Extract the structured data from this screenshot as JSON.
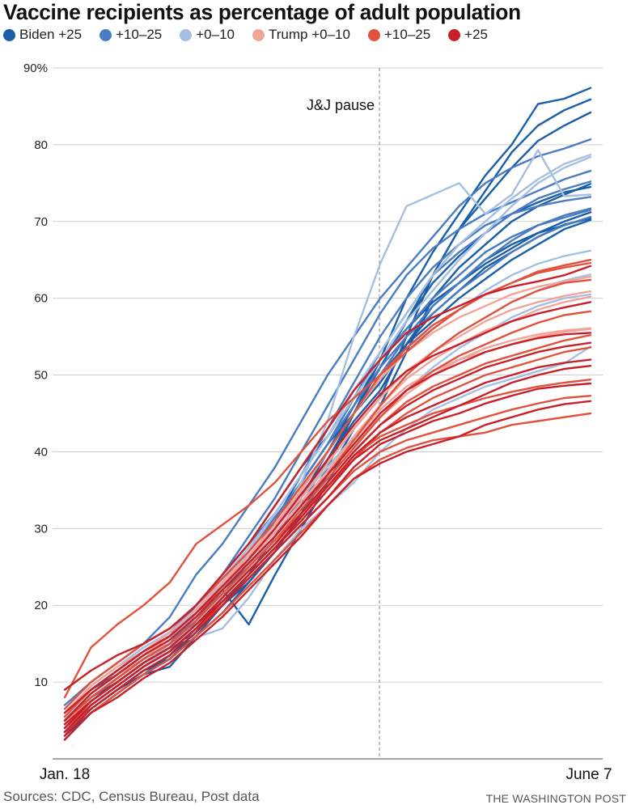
{
  "chart_data": {
    "type": "line",
    "title": "Vaccine recipients as percentage of adult population",
    "xlabel": "",
    "ylabel": "",
    "x_tick_labels": [
      "Jan. 18",
      "June 7"
    ],
    "y_ticks": [
      10,
      20,
      30,
      40,
      50,
      60,
      70,
      80,
      90
    ],
    "y_tick_labels": [
      "10",
      "20",
      "30",
      "40",
      "50",
      "60",
      "70",
      "80",
      "90%"
    ],
    "ylim": [
      0,
      90
    ],
    "x_weeks": 21,
    "grid": true,
    "legend_position": "top-left",
    "annotation": {
      "label": "J&J pause",
      "week_index": 12
    },
    "groups": [
      {
        "key": "b25",
        "label": "Biden +25",
        "color": "#1a5ea8"
      },
      {
        "key": "b10",
        "label": "+10–25",
        "color": "#4a7cc2"
      },
      {
        "key": "b0",
        "label": "+0–10",
        "color": "#a6bfe0"
      },
      {
        "key": "t0",
        "label": "Trump +0–10",
        "color": "#f2a49b"
      },
      {
        "key": "t10",
        "label": "+10–25",
        "color": "#e0523e"
      },
      {
        "key": "t25",
        "label": "+25",
        "color": "#c8202a"
      }
    ],
    "series": [
      {
        "group": "b25",
        "values": [
          3.5,
          6.5,
          9,
          11.5,
          13,
          16,
          20,
          23,
          27,
          32,
          38,
          45,
          52,
          60,
          66,
          71,
          76,
          80,
          85.3,
          86,
          87.4
        ]
      },
      {
        "group": "b25",
        "values": [
          4,
          7,
          9.5,
          12,
          14,
          18,
          22,
          25,
          29,
          33,
          39,
          45,
          51,
          57,
          63,
          69,
          74,
          79,
          82.5,
          84.5,
          85.9
        ]
      },
      {
        "group": "b25",
        "values": [
          3,
          6,
          8.5,
          11,
          12,
          16,
          19,
          23,
          27,
          32,
          37,
          43,
          47,
          55,
          63,
          69,
          73,
          77,
          80.5,
          82.5,
          84.2
        ]
      },
      {
        "group": "b25",
        "values": [
          5,
          8,
          10,
          12.5,
          14.5,
          18,
          22,
          17.5,
          24,
          30,
          36,
          42,
          46,
          53,
          60,
          64,
          67,
          70,
          72,
          73.5,
          74.9
        ]
      },
      {
        "group": "b25",
        "values": [
          3.5,
          6.5,
          9,
          11,
          13.5,
          17,
          20,
          24,
          29,
          34,
          40,
          46,
          52,
          57,
          62,
          65.5,
          68.5,
          71,
          72.5,
          73.8,
          74.5
        ]
      },
      {
        "group": "b25",
        "values": [
          2.5,
          6,
          8.5,
          11,
          13,
          16.5,
          21,
          25,
          29,
          34,
          39,
          44,
          48,
          54,
          59,
          62,
          65,
          67,
          68.5,
          69.5,
          70.5
        ]
      },
      {
        "group": "b25",
        "values": [
          4,
          7.5,
          10,
          12.5,
          15,
          18,
          22,
          26,
          31,
          37,
          43,
          48,
          52,
          56,
          59.5,
          62,
          64.5,
          66.5,
          68.5,
          70,
          71.2
        ]
      },
      {
        "group": "b25",
        "values": [
          4.5,
          8,
          10.5,
          13,
          15.5,
          19,
          23,
          27,
          31,
          36,
          41,
          45,
          49,
          54,
          58,
          61,
          64,
          66,
          68,
          69.6,
          70.4
        ]
      },
      {
        "group": "b25",
        "values": [
          6,
          9,
          11,
          13.5,
          16,
          20,
          24,
          28,
          33,
          38,
          42,
          47,
          50,
          54,
          57,
          60,
          62.5,
          65,
          67,
          69,
          70.2
        ]
      },
      {
        "group": "b10",
        "values": [
          7,
          10,
          12.5,
          15,
          18.5,
          24,
          28,
          33,
          38,
          44,
          50,
          55,
          60,
          64,
          68,
          72,
          75,
          77,
          78.5,
          79.5,
          80.7
        ]
      },
      {
        "group": "b10",
        "values": [
          5,
          8.5,
          11,
          13.5,
          16,
          20,
          24,
          29,
          34,
          40,
          46,
          52,
          58,
          63,
          66.5,
          69,
          71,
          72.5,
          74,
          75.5,
          76.6
        ]
      },
      {
        "group": "b10",
        "values": [
          4.5,
          8,
          10.5,
          13,
          15,
          19,
          23,
          27,
          31,
          36,
          41,
          47,
          53,
          58,
          63,
          66,
          68.5,
          71,
          73,
          74.2,
          75.2
        ]
      },
      {
        "group": "b10",
        "values": [
          5.5,
          9,
          11.5,
          14,
          16.5,
          20,
          24,
          28,
          32,
          37,
          43,
          49,
          55,
          60,
          64,
          67,
          69.5,
          71,
          72,
          72.7,
          73.2
        ]
      },
      {
        "group": "b10",
        "values": [
          4,
          7.5,
          10,
          12.5,
          15,
          18.5,
          22,
          26,
          31,
          36,
          41,
          47,
          52,
          56,
          60,
          63,
          66,
          68,
          69.5,
          70.8,
          71.7
        ]
      },
      {
        "group": "b10",
        "values": [
          3.5,
          7,
          9.5,
          12,
          14.5,
          18,
          22,
          26,
          30,
          35,
          40,
          45,
          50,
          55,
          59,
          62,
          65,
          67.5,
          69.5,
          70.5,
          71.5
        ]
      },
      {
        "group": "b10",
        "values": [
          5,
          8,
          10.5,
          13,
          15.5,
          19,
          23,
          27,
          31.5,
          36,
          41,
          46,
          51,
          55,
          58,
          61,
          63.5,
          66,
          68,
          69.5,
          70.6
        ]
      },
      {
        "group": "b0",
        "values": [
          4,
          7,
          9.5,
          12,
          14.5,
          17,
          21,
          25,
          30,
          36,
          44,
          55,
          64.5,
          72,
          73.5,
          75,
          71,
          73.5,
          79.3,
          73.3,
          73.5
        ]
      },
      {
        "group": "b0",
        "values": [
          4.5,
          8,
          10.5,
          13,
          15.5,
          19,
          23,
          27,
          32,
          37,
          42,
          48,
          53,
          58,
          63,
          67,
          70,
          73,
          75.5,
          77.5,
          78.7
        ]
      },
      {
        "group": "b0",
        "values": [
          5,
          8.5,
          11,
          13.5,
          16,
          19.5,
          23.5,
          27.5,
          32,
          37,
          42,
          47,
          52,
          57,
          61,
          65,
          68.5,
          72,
          75,
          77,
          78.4
        ]
      },
      {
        "group": "b0",
        "values": [
          5.5,
          9,
          11.5,
          14,
          16,
          19,
          22,
          26,
          30,
          35,
          40,
          45,
          50,
          53.5,
          56,
          58.5,
          61,
          63,
          64.5,
          65.5,
          66.2
        ]
      },
      {
        "group": "b0",
        "values": [
          6,
          9.5,
          12,
          14.5,
          16.5,
          19.5,
          23,
          26.5,
          30,
          34,
          38,
          42,
          46,
          50,
          53,
          55.5,
          57.5,
          59.5,
          61,
          62.3,
          63.1
        ]
      },
      {
        "group": "b0",
        "values": [
          4.5,
          7.5,
          10,
          12.5,
          15,
          17.5,
          21,
          25,
          29,
          33,
          37,
          41,
          44.5,
          48,
          51,
          53.5,
          55.5,
          57.5,
          59,
          60,
          60.5
        ]
      },
      {
        "group": "b0",
        "values": [
          5,
          8.5,
          11,
          13.5,
          15,
          15.8,
          17,
          21,
          26,
          30,
          33,
          36,
          40,
          43,
          45.5,
          47,
          48.5,
          49.5,
          50.5,
          51.5,
          53.7
        ]
      },
      {
        "group": "t0",
        "values": [
          5,
          8.5,
          11,
          13.5,
          16,
          19,
          22.5,
          26.5,
          30.5,
          35,
          40,
          45,
          49.5,
          53,
          55.5,
          57.5,
          59,
          60.5,
          61.5,
          62.2,
          62.8
        ]
      },
      {
        "group": "t0",
        "values": [
          6,
          9.5,
          12,
          14,
          16.5,
          19.5,
          23,
          26.5,
          30,
          34,
          38.5,
          43,
          47,
          50.5,
          53,
          55,
          57,
          58.5,
          59.5,
          60.3,
          60.9
        ]
      },
      {
        "group": "t0",
        "values": [
          4.5,
          8,
          10.5,
          13,
          15.5,
          18.5,
          22,
          25.5,
          29,
          33,
          37.5,
          42,
          46,
          49.5,
          52,
          54,
          55.8,
          57,
          58.5,
          59.5,
          60.2
        ]
      },
      {
        "group": "t0",
        "values": [
          5.5,
          9,
          11.5,
          14,
          16,
          19,
          22.5,
          26,
          29.5,
          33.5,
          37.5,
          41.5,
          45.5,
          48.5,
          50.5,
          52,
          53.5,
          54.5,
          55.3,
          55.8,
          56.1
        ]
      },
      {
        "group": "t0",
        "values": [
          5,
          8.5,
          11,
          13,
          15.5,
          18.5,
          22,
          25.5,
          29,
          33,
          37,
          41,
          44.5,
          47.5,
          50,
          52,
          53,
          54,
          55,
          55.6,
          56.0
        ]
      },
      {
        "group": "t10",
        "values": [
          8,
          14.5,
          17.5,
          20,
          23,
          28,
          30.5,
          33,
          36,
          40,
          44,
          47,
          50,
          53,
          56,
          58.5,
          60.5,
          62,
          63.5,
          64.3,
          65.0
        ]
      },
      {
        "group": "t10",
        "values": [
          6.5,
          10,
          12.5,
          15,
          17,
          20,
          23.5,
          27,
          31,
          35.5,
          40,
          45,
          50,
          53.5,
          56.5,
          58.5,
          60.5,
          62,
          63.3,
          64,
          64.6
        ]
      },
      {
        "group": "t10",
        "values": [
          5.5,
          9,
          11.5,
          14,
          16,
          19,
          22,
          25.5,
          29,
          33,
          37,
          41.5,
          46,
          50,
          53,
          55.5,
          57.5,
          59.5,
          61,
          62,
          62.4
        ]
      },
      {
        "group": "t10",
        "values": [
          5,
          8,
          10.5,
          13,
          15,
          18,
          21.5,
          25,
          28.5,
          32.5,
          36.5,
          40.5,
          44.5,
          48,
          50.5,
          52.5,
          54,
          55.5,
          56.8,
          57.8,
          58.3
        ]
      },
      {
        "group": "t10",
        "values": [
          4,
          7.5,
          10,
          12.5,
          14.5,
          17.5,
          21,
          24.5,
          28,
          32,
          36,
          40,
          43.5,
          46.5,
          48.5,
          50,
          51.5,
          52.5,
          53.5,
          54.5,
          55.2
        ]
      },
      {
        "group": "t10",
        "values": [
          5,
          8,
          10.5,
          13,
          15,
          18,
          21.5,
          25,
          28.5,
          32,
          35.5,
          39,
          42.5,
          45,
          47,
          48.5,
          50,
          51,
          52,
          53,
          53.6
        ]
      },
      {
        "group": "t10",
        "values": [
          3,
          7,
          9.5,
          12,
          14,
          17,
          20.5,
          24,
          27.5,
          31.5,
          35.5,
          39.5,
          42,
          43.5,
          45,
          46,
          47,
          47.8,
          48.5,
          49,
          49.4
        ]
      },
      {
        "group": "t10",
        "values": [
          4,
          7,
          9.5,
          12,
          14,
          17,
          20,
          23.5,
          27,
          30.5,
          34,
          37.5,
          40,
          41.5,
          42.5,
          43.5,
          44.5,
          45.5,
          46.3,
          47.0,
          47.3
        ]
      },
      {
        "group": "t10",
        "values": [
          2.5,
          6,
          8.5,
          11,
          13,
          16,
          19,
          22.5,
          26,
          29.5,
          33,
          36.5,
          39,
          40.5,
          41.5,
          42,
          42.5,
          43.5,
          44,
          44.5,
          45.0
        ]
      },
      {
        "group": "t25",
        "values": [
          9,
          11.5,
          13.5,
          15,
          17,
          20,
          24,
          28,
          33,
          38,
          43,
          48,
          52,
          55.5,
          57.5,
          59,
          60.5,
          61.5,
          62.2,
          63,
          64.2
        ]
      },
      {
        "group": "t25",
        "values": [
          6,
          9,
          11.5,
          14,
          16,
          19,
          22.5,
          26,
          30,
          34.5,
          39,
          43.5,
          47.5,
          50.5,
          52.5,
          54,
          55.5,
          57,
          58,
          58.8,
          59.5
        ]
      },
      {
        "group": "t25",
        "values": [
          5,
          8.5,
          11,
          13.5,
          15.5,
          18.5,
          22,
          25.5,
          29,
          33,
          37,
          41,
          45,
          48,
          50,
          51.5,
          53,
          54,
          54.8,
          55.3,
          55.5
        ]
      },
      {
        "group": "t25",
        "values": [
          4,
          7.5,
          10,
          12.5,
          14.5,
          17.5,
          21,
          24.5,
          28,
          32,
          36,
          40,
          43.5,
          46,
          48,
          49.5,
          51,
          52,
          53,
          53.7,
          54.2
        ]
      },
      {
        "group": "t25",
        "values": [
          3.5,
          7,
          9.5,
          12,
          14,
          17,
          20.5,
          24,
          27.5,
          31.5,
          35.5,
          39.5,
          42.5,
          44.5,
          46,
          47.5,
          49,
          50,
          51,
          51.6,
          52.0
        ]
      },
      {
        "group": "t25",
        "values": [
          4.5,
          7.5,
          10,
          12.5,
          14.5,
          17.5,
          20.5,
          24,
          27.5,
          31,
          35,
          39,
          41.5,
          43,
          44.5,
          46,
          47.5,
          49,
          50,
          50.8,
          51.2
        ]
      },
      {
        "group": "t25",
        "values": [
          3,
          6.5,
          9,
          11.5,
          13.5,
          16.5,
          20,
          23.5,
          27,
          30.5,
          34,
          38,
          41,
          42.5,
          44,
          45,
          46.3,
          47.3,
          48.2,
          48.6,
          48.9
        ]
      },
      {
        "group": "t25",
        "values": [
          2.5,
          6,
          8,
          10.5,
          12.5,
          15.5,
          18.5,
          22,
          25.5,
          29,
          33,
          36.5,
          38.5,
          40,
          41,
          42,
          43.5,
          44.5,
          45.5,
          46.2,
          46.6
        ]
      }
    ]
  },
  "footer": {
    "source": "Sources: CDC, Census Bureau, Post data",
    "credit": "THE WASHINGTON POST"
  }
}
